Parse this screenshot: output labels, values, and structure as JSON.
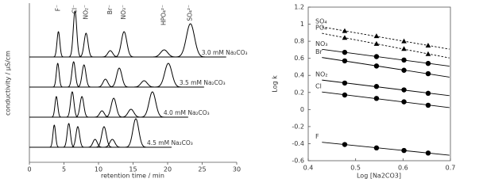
{
  "chart_data": [
    {
      "type": "chromatogram",
      "xlabel": "retention time / min",
      "ylabel": "conductivity / µS/cm",
      "xlim": [
        0,
        30
      ],
      "xticks": [
        0,
        5,
        10,
        15,
        20,
        25,
        30
      ],
      "peak_labels": [
        "F⁻",
        "Cl⁻",
        "NO₂⁻",
        "Br⁻",
        "NO₃⁻",
        "HPO₄²⁻",
        "SO₄²⁻"
      ],
      "series": [
        {
          "name": "3.0 mM Na₂CO₃",
          "color": "#000000",
          "peaks": [
            4.2,
            6.6,
            8.2,
            11.7,
            13.7,
            19.5,
            23.3
          ],
          "heights": [
            32,
            58,
            30,
            8,
            32,
            9,
            42
          ]
        },
        {
          "name": "3.5 mM Na₂CO₃",
          "color": "#000000",
          "peaks": [
            4.1,
            6.4,
            7.9,
            11.0,
            13.0,
            16.6,
            20.1
          ],
          "heights": [
            30,
            32,
            28,
            10,
            24,
            8,
            30
          ]
        },
        {
          "name": "4.0 mM Na₂CO₃",
          "color": "#000000",
          "peaks": [
            3.9,
            6.2,
            7.6,
            10.5,
            12.2,
            14.7,
            17.8
          ],
          "heights": [
            26,
            32,
            26,
            8,
            24,
            10,
            32
          ]
        },
        {
          "name": "4.5 mM Na₂CO₃",
          "color": "#000000",
          "peaks": [
            3.6,
            5.7,
            7.0,
            9.5,
            10.8,
            12.0,
            15.4
          ],
          "heights": [
            28,
            30,
            26,
            10,
            26,
            10,
            36
          ]
        }
      ]
    },
    {
      "type": "scatter",
      "xlabel": "Log [Na2CO3]",
      "ylabel": "Log k",
      "xlim": [
        0.4,
        0.7
      ],
      "xticks": [
        0.4,
        0.5,
        0.6,
        0.7
      ],
      "ylim": [
        -0.6,
        1.2
      ],
      "yticks": [
        -0.6,
        -0.4,
        -0.2,
        0,
        0.2,
        0.4,
        0.6,
        0.8,
        1.0,
        1.2
      ],
      "x": [
        0.477,
        0.544,
        0.602,
        0.653
      ],
      "series": [
        {
          "name": "SO₄",
          "color": "#000000",
          "marker": "triangle",
          "dashed": true,
          "values": [
            0.92,
            0.86,
            0.8,
            0.75
          ]
        },
        {
          "name": "PO₄",
          "color": "#000000",
          "marker": "triangle",
          "dashed": true,
          "values": [
            0.84,
            0.77,
            0.71,
            0.65
          ]
        },
        {
          "name": "NO₃",
          "color": "#000000",
          "marker": "circle",
          "dashed": false,
          "values": [
            0.67,
            0.62,
            0.58,
            0.54
          ]
        },
        {
          "name": "Br",
          "color": "#000000",
          "marker": "circle",
          "dashed": false,
          "values": [
            0.57,
            0.51,
            0.46,
            0.42
          ]
        },
        {
          "name": "NO₂",
          "color": "#000000",
          "marker": "circle",
          "dashed": false,
          "values": [
            0.31,
            0.27,
            0.23,
            0.19
          ]
        },
        {
          "name": "Cl",
          "color": "#000000",
          "marker": "circle",
          "dashed": false,
          "values": [
            0.17,
            0.13,
            0.09,
            0.05
          ]
        },
        {
          "name": "F",
          "color": "#000000",
          "marker": "circle",
          "dashed": false,
          "values": [
            -0.41,
            -0.45,
            -0.48,
            -0.51
          ]
        }
      ]
    }
  ]
}
